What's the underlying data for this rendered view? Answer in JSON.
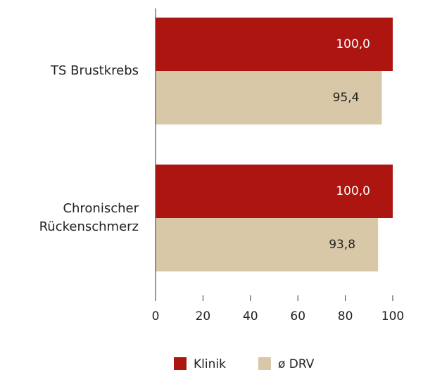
{
  "chart_data": {
    "type": "barh",
    "categories": [
      "TS Brustkrebs",
      "Chronischer Rückenschmerz"
    ],
    "series": [
      {
        "name": "Klinik",
        "color": "#ad1511",
        "values": [
          100,
          100
        ],
        "value_labels": [
          "100,0",
          "100,0"
        ]
      },
      {
        "name": "ø DRV",
        "color": "#d9c8a8",
        "values": [
          95.4,
          93.8
        ],
        "value_labels": [
          "95,4",
          "93,8"
        ]
      }
    ],
    "xlim": [
      0,
      100
    ],
    "xticks": [
      0,
      20,
      40,
      60,
      80,
      100
    ],
    "grid": false,
    "legend": "bottom"
  }
}
